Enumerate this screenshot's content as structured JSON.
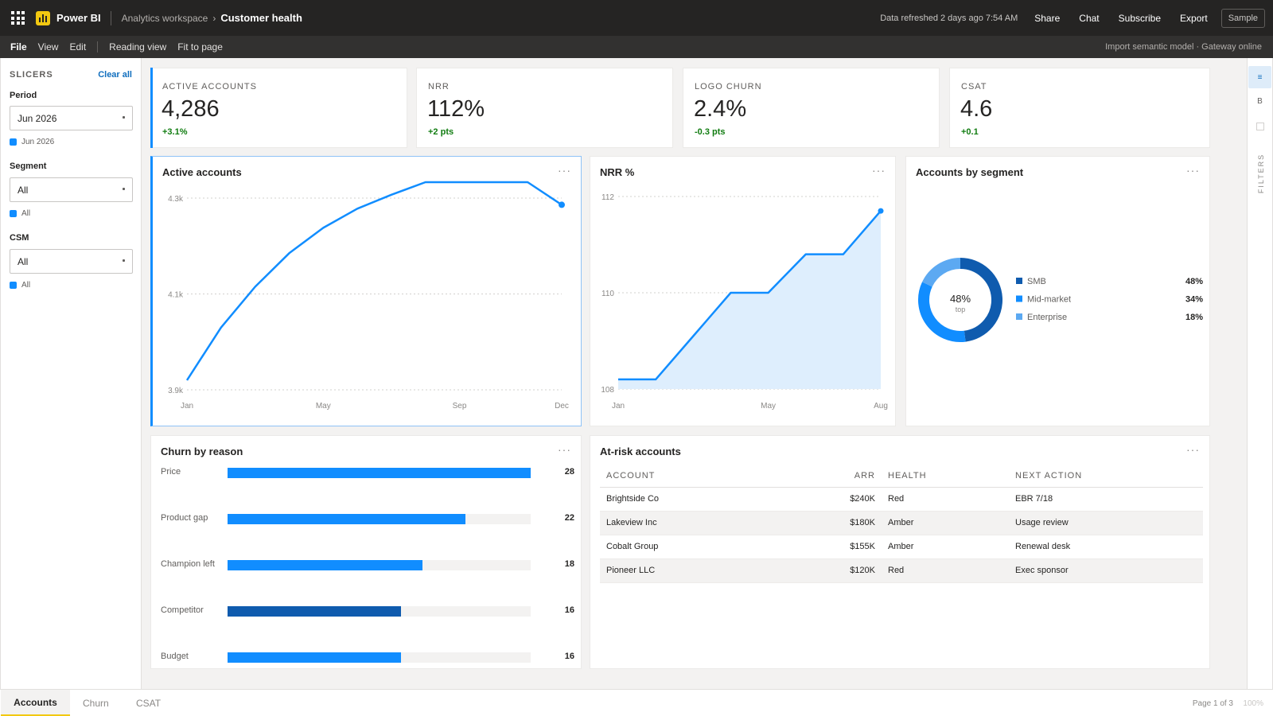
{
  "topbar": {
    "brand": "Power BI",
    "workspace": "Analytics workspace",
    "chevron": "›",
    "report": "Customer health",
    "refreshed": "Data refreshed 2 days ago 7:54 AM",
    "actions": [
      "Share",
      "Chat",
      "Subscribe",
      "Export"
    ],
    "sample_button": "Sample",
    "icons": {
      "app_launcher": "waffle-icon",
      "logo": "power-bi-logo"
    }
  },
  "menubar": {
    "items": [
      "File",
      "View",
      "Edit"
    ],
    "view_items": [
      "Reading view",
      "Fit to page"
    ],
    "status": "Import semantic model · Gateway online"
  },
  "slicers": {
    "heading": "SLICERS",
    "clear_all": "Clear all",
    "items": [
      {
        "label": "Period",
        "value": "Jun 2026",
        "chip": "Jun 2026"
      },
      {
        "label": "Segment",
        "value": "All",
        "chip": "All"
      },
      {
        "label": "CSM",
        "value": "All",
        "chip": "All"
      }
    ]
  },
  "kpis": [
    {
      "label": "ACTIVE ACCOUNTS",
      "value": "4,286",
      "delta": "+3.1%",
      "delta_color": "#107C10"
    },
    {
      "label": "NRR",
      "value": "112%",
      "delta": "+2 pts",
      "delta_color": "#107C10"
    },
    {
      "label": "LOGO CHURN",
      "value": "2.4%",
      "delta": "-0.3 pts",
      "delta_color": "#107C10"
    },
    {
      "label": "CSAT",
      "value": "4.6",
      "delta": "+0.1",
      "delta_color": "#107C10"
    }
  ],
  "visuals": {
    "more": "···",
    "active_accounts": {
      "title": "Active accounts"
    },
    "nrr": {
      "title": "NRR %"
    },
    "segment": {
      "title": "Accounts by segment",
      "center_value": "48%",
      "center_label": "top"
    },
    "churn": {
      "title": "Churn by reason"
    },
    "at_risk": {
      "title": "At-risk accounts",
      "columns": [
        "ACCOUNT",
        "ARR",
        "HEALTH",
        "NEXT ACTION"
      ],
      "rows": [
        [
          "Brightside Co",
          "$240K",
          "Red",
          "EBR 7/18"
        ],
        [
          "Lakeview Inc",
          "$180K",
          "Amber",
          "Usage review"
        ],
        [
          "Cobalt Group",
          "$155K",
          "Amber",
          "Renewal desk"
        ],
        [
          "Pioneer LLC",
          "$120K",
          "Red",
          "Exec sponsor"
        ]
      ]
    }
  },
  "chart_data": [
    {
      "type": "line",
      "title": "Active accounts",
      "x": [
        "Jan",
        "Feb",
        "Mar",
        "Apr",
        "May",
        "Jun",
        "Jul",
        "Aug",
        "Sep",
        "Oct",
        "Nov",
        "Dec"
      ],
      "x_tick_labels": [
        "Jan",
        "May",
        "Sep",
        "Dec"
      ],
      "y_tick_labels": [
        "4.3k",
        "4.1k",
        "3.9k"
      ],
      "ylim": [
        3900,
        4300
      ],
      "series": [
        {
          "values": [
            3920,
            4030,
            4115,
            4185,
            4238,
            4278,
            4307,
            4340,
            4348,
            4355,
            4359,
            4286
          ]
        }
      ],
      "color": "#118DFF",
      "grid": true
    },
    {
      "type": "area",
      "title": "NRR %",
      "x": [
        "Jan",
        "Feb",
        "Mar",
        "Apr",
        "May",
        "Jun",
        "Jul",
        "Aug"
      ],
      "x_tick_labels": [
        "Jan",
        "May",
        "Aug"
      ],
      "y_tick_labels": [
        "112",
        "110",
        "108"
      ],
      "ylim": [
        108,
        112
      ],
      "series": [
        {
          "values": [
            108.2,
            108.2,
            109.1,
            110.0,
            110.0,
            110.8,
            110.8,
            111.7
          ]
        }
      ],
      "color": "#118DFF",
      "grid": true
    },
    {
      "type": "pie",
      "title": "Accounts by segment",
      "categories": [
        "SMB",
        "Mid-market",
        "Enterprise"
      ],
      "values": [
        48,
        34,
        18
      ],
      "value_labels": [
        "48%",
        "34%",
        "18%"
      ],
      "colors": [
        "#0F5BAE",
        "#118DFF",
        "#5CA9F2"
      ],
      "legend": "right"
    },
    {
      "type": "bar",
      "orientation": "horizontal",
      "title": "Churn by reason",
      "categories": [
        "Price",
        "Product gap",
        "Champion left",
        "Competitor",
        "Budget"
      ],
      "values": [
        28,
        22,
        18,
        16,
        16
      ],
      "value_labels": [
        "28",
        "22",
        "18",
        "16",
        "16"
      ],
      "xlim": [
        0,
        28
      ],
      "colors": [
        "#118DFF",
        "#118DFF",
        "#118DFF",
        "#0F5BAE",
        "#118DFF"
      ]
    }
  ],
  "rail": {
    "buttons": [
      "≡",
      "B"
    ],
    "filters_label": "FILTERS"
  },
  "tabs": {
    "items": [
      "Accounts",
      "Churn",
      "CSAT"
    ],
    "active": 0,
    "page_info": "Page 1 of 3",
    "zoom": "100%"
  },
  "colors": {
    "accent": "#118DFF",
    "dark_accent": "#0F5BAE",
    "brand": "#F2C811",
    "positive": "#107C10"
  }
}
